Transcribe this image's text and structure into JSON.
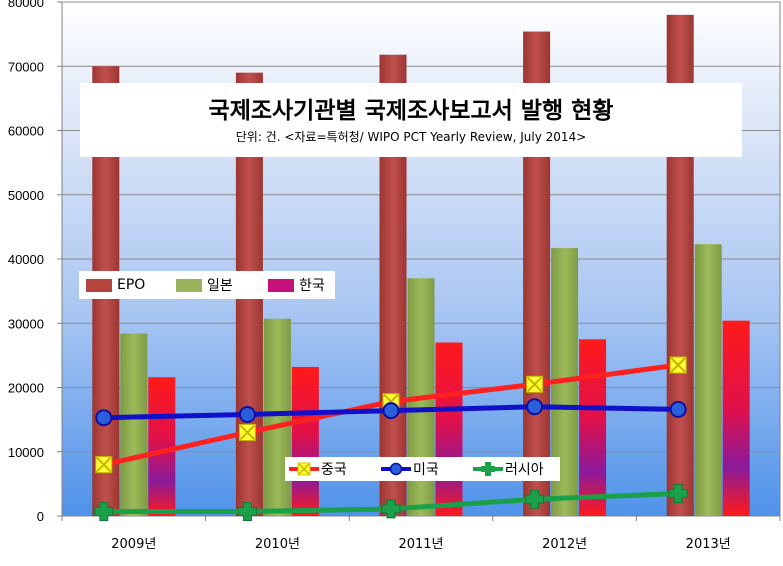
{
  "chart_data": {
    "type": "bar+line",
    "title": "국제조사기관별 국제조사보고서 발행 현황",
    "subtitle": "단위: 건. <자료=특허청/  WIPO PCT Yearly Review, July 2014>",
    "categories": [
      "2009년",
      "2010년",
      "2011년",
      "2012년",
      "2013년"
    ],
    "ylim": [
      0,
      80000
    ],
    "yticks": [
      0,
      10000,
      20000,
      30000,
      40000,
      50000,
      60000,
      70000,
      80000
    ],
    "bar_series": [
      {
        "name": "EPO",
        "values": [
          70000,
          69000,
          71800,
          75400,
          78000
        ],
        "color": "#b5443f"
      },
      {
        "name": "일본",
        "values": [
          28400,
          30700,
          37000,
          41700,
          42300
        ],
        "color": "#9bb35a"
      },
      {
        "name": "한국",
        "values": [
          21600,
          23200,
          27000,
          27500,
          30400
        ],
        "color": "#e8103a"
      }
    ],
    "line_series": [
      {
        "name": "중국",
        "values": [
          8000,
          13000,
          17800,
          20500,
          23500
        ],
        "color": "#ff2020",
        "marker": "x-square",
        "marker_color": "#ffff33"
      },
      {
        "name": "미국",
        "values": [
          15300,
          15800,
          16400,
          17000,
          16600
        ],
        "color": "#1010c8",
        "marker": "circle",
        "marker_color": "#2b5fd9"
      },
      {
        "name": "러시아",
        "values": [
          700,
          700,
          1100,
          2600,
          3500
        ],
        "color": "#1aa048",
        "marker": "plus",
        "marker_color": "#1aa048"
      }
    ],
    "grid": true,
    "legend_bars": "left-middle",
    "legend_lines": "bottom-center"
  }
}
